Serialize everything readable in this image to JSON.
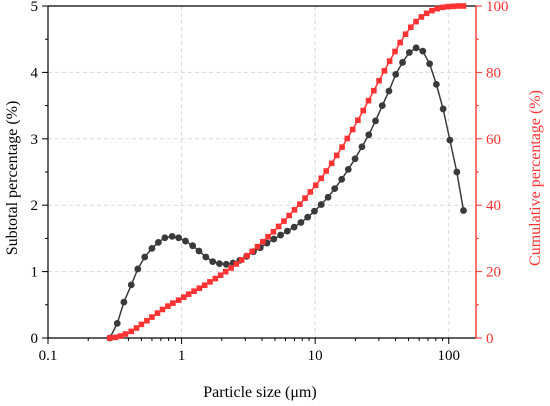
{
  "chart_data": {
    "type": "line",
    "xlabel": "Particle size (μm)",
    "ylabel_left": "Subtotal percentage (%)",
    "ylabel_right": "Cumulative percentage (%)",
    "x_scale": "log",
    "xlim": [
      0.1,
      160
    ],
    "ylim_left": [
      0,
      5
    ],
    "ylim_right": [
      0,
      100
    ],
    "x_tick_labels": [
      "0.1",
      "1",
      "10",
      "100"
    ],
    "y_left_tick_labels": [
      "0",
      "1",
      "2",
      "3",
      "4",
      "5"
    ],
    "y_right_tick_labels": [
      "0",
      "20",
      "40",
      "60",
      "80",
      "100"
    ],
    "grid": true,
    "colors": {
      "subtotal": "#3a3a3a",
      "cumulative": "#ff3333",
      "grid": "#d9d9d9"
    },
    "series": [
      {
        "axis": "left",
        "marker": "circle",
        "x": [
          0.29,
          0.33,
          0.37,
          0.42,
          0.47,
          0.53,
          0.6,
          0.67,
          0.75,
          0.85,
          0.95,
          1.07,
          1.21,
          1.35,
          1.52,
          1.71,
          1.92,
          2.16,
          2.43,
          2.73,
          3.07,
          3.45,
          3.88,
          4.36,
          4.9,
          5.51,
          6.19,
          6.96,
          7.82,
          8.79,
          9.88,
          11.1,
          12.5,
          14.0,
          15.8,
          17.7,
          19.9,
          22.4,
          25.2,
          28.3,
          31.8,
          35.7,
          40.1,
          45.1,
          50.7,
          57.0,
          64.0,
          71.9,
          80.8,
          90.8,
          102,
          115,
          129
        ],
        "y": [
          0,
          0.22,
          0.54,
          0.8,
          1.04,
          1.22,
          1.35,
          1.44,
          1.51,
          1.53,
          1.51,
          1.46,
          1.39,
          1.31,
          1.22,
          1.15,
          1.12,
          1.11,
          1.13,
          1.17,
          1.23,
          1.3,
          1.36,
          1.43,
          1.49,
          1.55,
          1.61,
          1.67,
          1.74,
          1.82,
          1.91,
          2.01,
          2.12,
          2.25,
          2.39,
          2.54,
          2.7,
          2.88,
          3.06,
          3.27,
          3.5,
          3.72,
          3.97,
          4.15,
          4.3,
          4.37,
          4.32,
          4.13,
          3.82,
          3.45,
          2.98,
          2.5,
          1.92
        ]
      },
      {
        "axis": "right",
        "marker": "square",
        "x": [
          0.29,
          0.32,
          0.35,
          0.38,
          0.42,
          0.46,
          0.5,
          0.55,
          0.6,
          0.66,
          0.72,
          0.79,
          0.86,
          0.95,
          1.04,
          1.13,
          1.24,
          1.36,
          1.49,
          1.63,
          1.79,
          1.96,
          2.14,
          2.35,
          2.57,
          2.82,
          3.09,
          3.38,
          3.7,
          4.06,
          4.44,
          4.87,
          5.33,
          5.84,
          6.39,
          7.0,
          7.67,
          8.4,
          9.2,
          10.1,
          11.1,
          12.1,
          13.3,
          14.5,
          15.9,
          17.4,
          19.1,
          20.9,
          22.9,
          25.1,
          27.5,
          30.1,
          33.0,
          36.1,
          39.6,
          43.3,
          47.5,
          52.0,
          56.9,
          62.4,
          68.3,
          74.8,
          82.0,
          89.8,
          98.4,
          108,
          118,
          129
        ],
        "y": [
          0,
          0.2,
          0.6,
          1.2,
          2.0,
          3.0,
          4.1,
          5.2,
          6.3,
          7.5,
          8.6,
          9.6,
          10.5,
          11.4,
          12.3,
          13.2,
          14.1,
          15.0,
          15.9,
          16.9,
          17.9,
          18.9,
          20.0,
          21.1,
          22.3,
          23.5,
          24.8,
          26.1,
          27.5,
          29.0,
          30.5,
          32.0,
          33.6,
          35.2,
          36.9,
          38.6,
          40.3,
          42.1,
          44.0,
          46.0,
          48.1,
          50.3,
          52.6,
          55.0,
          57.5,
          60.1,
          62.8,
          65.6,
          68.5,
          71.5,
          74.5,
          77.5,
          80.5,
          83.4,
          86.3,
          89.0,
          91.5,
          93.6,
          95.3,
          96.7,
          97.8,
          98.6,
          99.2,
          99.6,
          99.8,
          99.9,
          100,
          100
        ]
      }
    ]
  }
}
